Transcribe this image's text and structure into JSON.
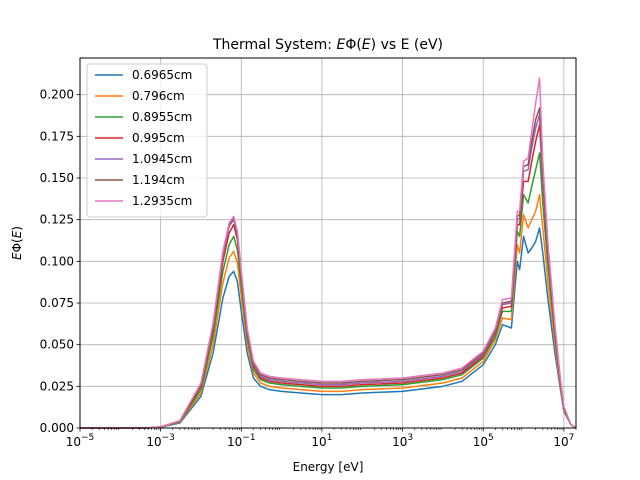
{
  "chart_data": {
    "type": "line",
    "title": "Thermal System: EΦ(E) vs E (eV)",
    "xlabel": "Energy [eV]",
    "ylabel": "EΦ(E)",
    "xscale": "log",
    "xlim": [
      1e-05,
      20000000.0
    ],
    "ylim": [
      0,
      0.222
    ],
    "grid": true,
    "legend_position": "upper-left",
    "x_ticks": [
      {
        "value": 1e-05,
        "base": "10",
        "exp": "−5"
      },
      {
        "value": 0.001,
        "base": "10",
        "exp": "−3"
      },
      {
        "value": 0.1,
        "base": "10",
        "exp": "−1"
      },
      {
        "value": 10.0,
        "base": "10",
        "exp": "1"
      },
      {
        "value": 1000.0,
        "base": "10",
        "exp": "3"
      },
      {
        "value": 100000.0,
        "base": "10",
        "exp": "5"
      },
      {
        "value": 10000000.0,
        "base": "10",
        "exp": "7"
      }
    ],
    "y_ticks": [
      "0.000",
      "0.025",
      "0.050",
      "0.075",
      "0.100",
      "0.125",
      "0.150",
      "0.175",
      "0.200"
    ],
    "x": [
      1e-05,
      0.0001,
      0.0005,
      0.001,
      0.003,
      0.01,
      0.02,
      0.035,
      0.05,
      0.065,
      0.08,
      0.1,
      0.14,
      0.2,
      0.3,
      0.5,
      1,
      3,
      10,
      30,
      100,
      1000.0,
      10000.0,
      30000.0,
      100000.0,
      200000.0,
      300000.0,
      500000.0,
      700000.0,
      800000.0,
      1000000.0,
      1300000.0,
      1600000.0,
      2000000.0,
      2500000.0,
      3000000.0,
      4000000.0,
      6000000.0,
      8000000.0,
      10000000.0,
      15000000.0,
      20000000.0
    ],
    "series": [
      {
        "name": "0.6965cm",
        "color": "#1f77b4",
        "values": [
          0,
          0,
          0.0001,
          0.0005,
          0.003,
          0.019,
          0.045,
          0.078,
          0.091,
          0.094,
          0.088,
          0.07,
          0.045,
          0.03,
          0.025,
          0.023,
          0.022,
          0.021,
          0.02,
          0.02,
          0.021,
          0.022,
          0.025,
          0.028,
          0.038,
          0.05,
          0.062,
          0.06,
          0.1,
          0.095,
          0.115,
          0.105,
          0.108,
          0.112,
          0.12,
          0.105,
          0.078,
          0.045,
          0.025,
          0.01,
          0.002,
          0
        ]
      },
      {
        "name": "0.796cm",
        "color": "#ff7f0e",
        "values": [
          0,
          0,
          0.0001,
          0.0006,
          0.0035,
          0.021,
          0.05,
          0.087,
          0.102,
          0.106,
          0.099,
          0.079,
          0.05,
          0.033,
          0.027,
          0.025,
          0.024,
          0.023,
          0.022,
          0.022,
          0.023,
          0.024,
          0.027,
          0.03,
          0.04,
          0.053,
          0.066,
          0.065,
          0.11,
          0.105,
          0.128,
          0.12,
          0.125,
          0.13,
          0.14,
          0.12,
          0.088,
          0.05,
          0.027,
          0.011,
          0.002,
          0
        ]
      },
      {
        "name": "0.8955cm",
        "color": "#2ca02c",
        "values": [
          0,
          0,
          0.0001,
          0.0006,
          0.0038,
          0.023,
          0.055,
          0.094,
          0.11,
          0.115,
          0.107,
          0.085,
          0.054,
          0.035,
          0.029,
          0.027,
          0.026,
          0.025,
          0.024,
          0.024,
          0.025,
          0.026,
          0.029,
          0.032,
          0.042,
          0.055,
          0.07,
          0.07,
          0.118,
          0.115,
          0.14,
          0.135,
          0.145,
          0.155,
          0.165,
          0.135,
          0.098,
          0.055,
          0.029,
          0.012,
          0.002,
          0
        ]
      },
      {
        "name": "0.995cm",
        "color": "#d62728",
        "values": [
          0,
          0,
          0.0001,
          0.0007,
          0.004,
          0.025,
          0.059,
          0.1,
          0.117,
          0.122,
          0.113,
          0.09,
          0.057,
          0.037,
          0.03,
          0.028,
          0.027,
          0.026,
          0.025,
          0.025,
          0.026,
          0.027,
          0.03,
          0.033,
          0.043,
          0.057,
          0.072,
          0.073,
          0.122,
          0.122,
          0.148,
          0.148,
          0.16,
          0.172,
          0.182,
          0.148,
          0.105,
          0.058,
          0.03,
          0.012,
          0.002,
          0
        ]
      },
      {
        "name": "1.0945cm",
        "color": "#9467bd",
        "values": [
          0,
          0,
          0.0001,
          0.0007,
          0.0042,
          0.026,
          0.061,
          0.104,
          0.121,
          0.125,
          0.116,
          0.092,
          0.058,
          0.038,
          0.031,
          0.029,
          0.028,
          0.027,
          0.026,
          0.026,
          0.027,
          0.028,
          0.031,
          0.034,
          0.044,
          0.058,
          0.074,
          0.075,
          0.125,
          0.126,
          0.154,
          0.155,
          0.168,
          0.18,
          0.188,
          0.152,
          0.108,
          0.06,
          0.031,
          0.012,
          0.002,
          0
        ]
      },
      {
        "name": "1.194cm",
        "color": "#8c564b",
        "values": [
          0,
          0,
          0.0001,
          0.0007,
          0.0043,
          0.026,
          0.062,
          0.105,
          0.122,
          0.126,
          0.117,
          0.093,
          0.059,
          0.039,
          0.032,
          0.03,
          0.029,
          0.028,
          0.027,
          0.027,
          0.028,
          0.029,
          0.032,
          0.035,
          0.045,
          0.059,
          0.075,
          0.076,
          0.127,
          0.128,
          0.157,
          0.158,
          0.172,
          0.185,
          0.192,
          0.155,
          0.11,
          0.061,
          0.031,
          0.012,
          0.002,
          0
        ]
      },
      {
        "name": "1.2935cm",
        "color": "#e377c2",
        "values": [
          0,
          0,
          0.0001,
          0.0007,
          0.0044,
          0.027,
          0.063,
          0.106,
          0.123,
          0.127,
          0.118,
          0.094,
          0.06,
          0.04,
          0.033,
          0.031,
          0.03,
          0.029,
          0.028,
          0.028,
          0.029,
          0.03,
          0.033,
          0.036,
          0.046,
          0.06,
          0.077,
          0.078,
          0.13,
          0.13,
          0.16,
          0.162,
          0.178,
          0.195,
          0.21,
          0.16,
          0.112,
          0.062,
          0.032,
          0.013,
          0.002,
          0
        ]
      }
    ]
  }
}
